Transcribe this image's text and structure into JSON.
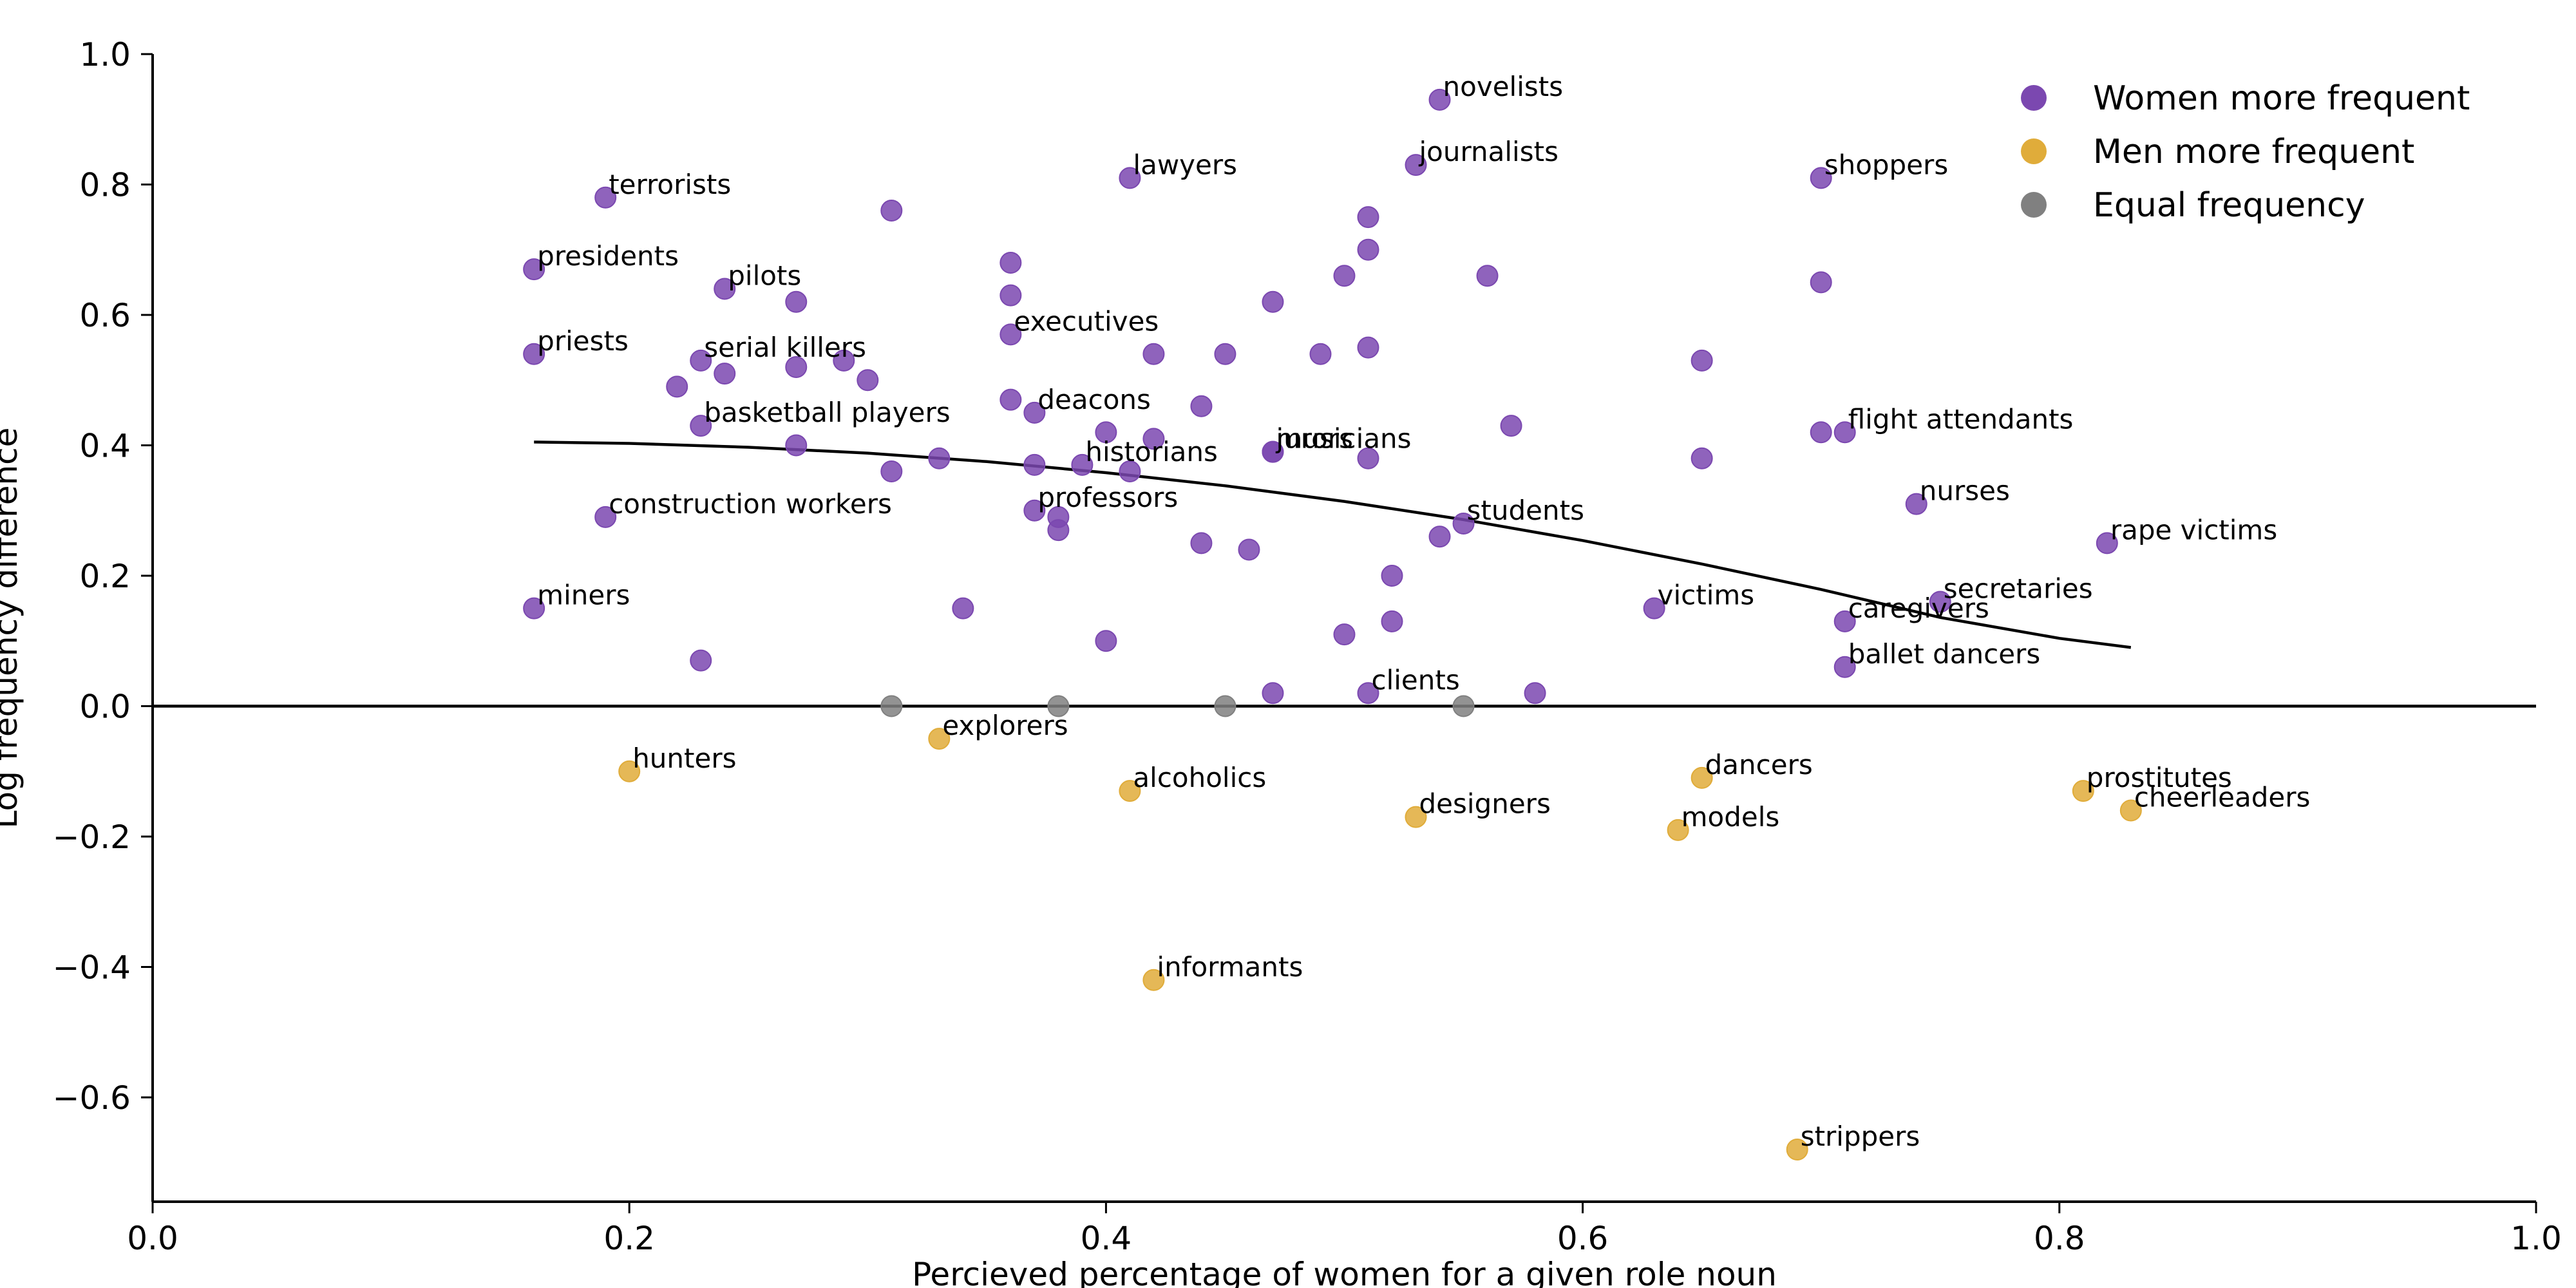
{
  "chart_data": {
    "type": "scatter",
    "xlabel": "Percieved percentage of women for a given role noun",
    "ylabel": "Log frequency difference",
    "xlim": [
      0.0,
      1.0
    ],
    "ylim": [
      -0.76,
      1.0
    ],
    "xticks": [
      "0.0",
      "0.2",
      "0.4",
      "0.6",
      "0.8",
      "1.0"
    ],
    "xtick_values": [
      0.0,
      0.2,
      0.4,
      0.6,
      0.8,
      1.0
    ],
    "yticks": [
      "−0.6",
      "−0.4",
      "−0.2",
      "0.0",
      "0.2",
      "0.4",
      "0.6",
      "0.8",
      "1.0"
    ],
    "ytick_values": [
      -0.6,
      -0.4,
      -0.2,
      0.0,
      0.2,
      0.4,
      0.6,
      0.8,
      1.0
    ],
    "grid": false,
    "legend_position": "top-right",
    "colors": {
      "women": "#7b48b0",
      "men": "#e0ac3a",
      "equal": "#808080",
      "line": "#000000"
    },
    "series": [
      {
        "name": "Women more frequent",
        "key": "women",
        "points": [
          {
            "x": 0.54,
            "y": 0.93,
            "label": "novelists"
          },
          {
            "x": 0.41,
            "y": 0.81,
            "label": "lawyers"
          },
          {
            "x": 0.53,
            "y": 0.83,
            "label": "journalists"
          },
          {
            "x": 0.7,
            "y": 0.81,
            "label": "shoppers"
          },
          {
            "x": 0.19,
            "y": 0.78,
            "label": "terrorists"
          },
          {
            "x": 0.31,
            "y": 0.76
          },
          {
            "x": 0.51,
            "y": 0.75
          },
          {
            "x": 0.51,
            "y": 0.7
          },
          {
            "x": 0.36,
            "y": 0.68
          },
          {
            "x": 0.16,
            "y": 0.67,
            "label": "presidents"
          },
          {
            "x": 0.5,
            "y": 0.66
          },
          {
            "x": 0.56,
            "y": 0.66
          },
          {
            "x": 0.7,
            "y": 0.65
          },
          {
            "x": 0.24,
            "y": 0.64,
            "label": "pilots"
          },
          {
            "x": 0.36,
            "y": 0.63
          },
          {
            "x": 0.27,
            "y": 0.62
          },
          {
            "x": 0.47,
            "y": 0.62
          },
          {
            "x": 0.36,
            "y": 0.57,
            "label": "executives"
          },
          {
            "x": 0.16,
            "y": 0.54,
            "label": "priests"
          },
          {
            "x": 0.42,
            "y": 0.54
          },
          {
            "x": 0.45,
            "y": 0.54
          },
          {
            "x": 0.49,
            "y": 0.54
          },
          {
            "x": 0.51,
            "y": 0.55
          },
          {
            "x": 0.23,
            "y": 0.53,
            "label": "serial killers"
          },
          {
            "x": 0.29,
            "y": 0.53
          },
          {
            "x": 0.65,
            "y": 0.53
          },
          {
            "x": 0.24,
            "y": 0.51
          },
          {
            "x": 0.27,
            "y": 0.52
          },
          {
            "x": 0.3,
            "y": 0.5
          },
          {
            "x": 0.22,
            "y": 0.49
          },
          {
            "x": 0.36,
            "y": 0.47
          },
          {
            "x": 0.37,
            "y": 0.45,
            "label": "deacons"
          },
          {
            "x": 0.44,
            "y": 0.46
          },
          {
            "x": 0.23,
            "y": 0.43,
            "label": "basketball players"
          },
          {
            "x": 0.57,
            "y": 0.43
          },
          {
            "x": 0.4,
            "y": 0.42
          },
          {
            "x": 0.42,
            "y": 0.41
          },
          {
            "x": 0.7,
            "y": 0.42
          },
          {
            "x": 0.71,
            "y": 0.42,
            "label": "flight attendants"
          },
          {
            "x": 0.27,
            "y": 0.4
          },
          {
            "x": 0.47,
            "y": 0.39,
            "label": "jurors"
          },
          {
            "x": 0.47,
            "y": 0.39,
            "label": "musicians"
          },
          {
            "x": 0.33,
            "y": 0.38
          },
          {
            "x": 0.51,
            "y": 0.38
          },
          {
            "x": 0.65,
            "y": 0.38
          },
          {
            "x": 0.37,
            "y": 0.37
          },
          {
            "x": 0.39,
            "y": 0.37,
            "label": "historians"
          },
          {
            "x": 0.41,
            "y": 0.36
          },
          {
            "x": 0.31,
            "y": 0.36
          },
          {
            "x": 0.37,
            "y": 0.3,
            "label": "professors"
          },
          {
            "x": 0.38,
            "y": 0.29
          },
          {
            "x": 0.74,
            "y": 0.31,
            "label": "nurses"
          },
          {
            "x": 0.19,
            "y": 0.29,
            "label": "construction workers"
          },
          {
            "x": 0.55,
            "y": 0.28,
            "label": "students"
          },
          {
            "x": 0.38,
            "y": 0.27
          },
          {
            "x": 0.54,
            "y": 0.26
          },
          {
            "x": 0.82,
            "y": 0.25,
            "label": "rape victims"
          },
          {
            "x": 0.44,
            "y": 0.25
          },
          {
            "x": 0.46,
            "y": 0.24
          },
          {
            "x": 0.52,
            "y": 0.2
          },
          {
            "x": 0.75,
            "y": 0.16,
            "label": "secretaries"
          },
          {
            "x": 0.16,
            "y": 0.15,
            "label": "miners"
          },
          {
            "x": 0.34,
            "y": 0.15
          },
          {
            "x": 0.63,
            "y": 0.15,
            "label": "victims"
          },
          {
            "x": 0.71,
            "y": 0.13,
            "label": "caregivers"
          },
          {
            "x": 0.52,
            "y": 0.13
          },
          {
            "x": 0.5,
            "y": 0.11
          },
          {
            "x": 0.4,
            "y": 0.1
          },
          {
            "x": 0.23,
            "y": 0.07
          },
          {
            "x": 0.71,
            "y": 0.06,
            "label": "ballet dancers"
          },
          {
            "x": 0.47,
            "y": 0.02
          },
          {
            "x": 0.51,
            "y": 0.02,
            "label": "clients"
          },
          {
            "x": 0.58,
            "y": 0.02
          }
        ]
      },
      {
        "name": "Men more frequent",
        "key": "men",
        "points": [
          {
            "x": 0.2,
            "y": -0.1,
            "label": "hunters"
          },
          {
            "x": 0.33,
            "y": -0.05,
            "label": "explorers"
          },
          {
            "x": 0.41,
            "y": -0.13,
            "label": "alcoholics"
          },
          {
            "x": 0.53,
            "y": -0.17,
            "label": "designers"
          },
          {
            "x": 0.65,
            "y": -0.11,
            "label": "dancers"
          },
          {
            "x": 0.64,
            "y": -0.19,
            "label": "models"
          },
          {
            "x": 0.81,
            "y": -0.13,
            "label": "prostitutes"
          },
          {
            "x": 0.83,
            "y": -0.16,
            "label": "cheerleaders"
          },
          {
            "x": 0.42,
            "y": -0.42,
            "label": "informants"
          },
          {
            "x": 0.69,
            "y": -0.68,
            "label": "strippers"
          }
        ]
      },
      {
        "name": "Equal frequency",
        "key": "equal",
        "points": [
          {
            "x": 0.31,
            "y": 0.0
          },
          {
            "x": 0.38,
            "y": 0.0
          },
          {
            "x": 0.45,
            "y": 0.0
          },
          {
            "x": 0.55,
            "y": 0.0
          }
        ]
      }
    ],
    "trend_line": {
      "x": [
        0.16,
        0.2,
        0.25,
        0.3,
        0.35,
        0.4,
        0.45,
        0.5,
        0.55,
        0.6,
        0.65,
        0.7,
        0.75,
        0.8,
        0.83
      ],
      "y": [
        0.405,
        0.403,
        0.397,
        0.388,
        0.375,
        0.358,
        0.338,
        0.314,
        0.286,
        0.254,
        0.218,
        0.179,
        0.136,
        0.104,
        0.09
      ]
    },
    "reference_line_y": 0.0
  }
}
